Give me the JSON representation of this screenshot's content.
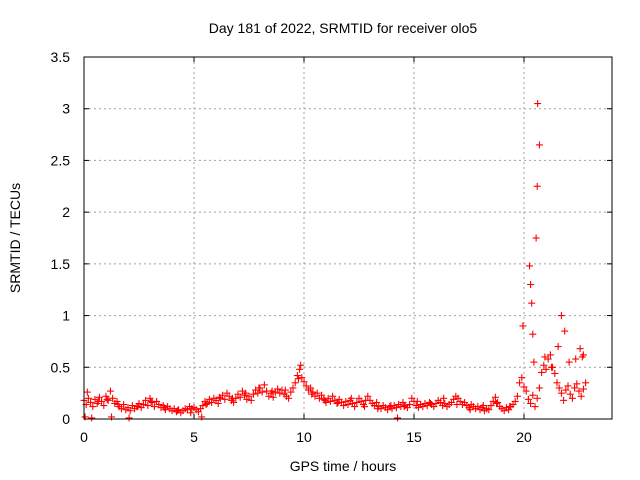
{
  "chart_data": {
    "type": "scatter",
    "title": "Day 181 of 2022, SRMTID for receiver olo5",
    "xlabel": "GPS time / hours",
    "ylabel": "SRMTID / TECUs",
    "xlim": [
      0,
      24
    ],
    "ylim": [
      0,
      3.5
    ],
    "xticks": [
      0,
      5,
      10,
      15,
      20
    ],
    "xtick_labels": [
      "0",
      "5",
      "10",
      "15",
      "20"
    ],
    "yticks": [
      0,
      0.5,
      1,
      1.5,
      2,
      2.5,
      3,
      3.5
    ],
    "ytick_labels": [
      "0",
      "0.5",
      "1",
      "1.5",
      "2",
      "2.5",
      "3",
      "3.5"
    ],
    "grid": true,
    "marker": "+",
    "series": [
      {
        "name": "SRMTID",
        "color": "#ff0000",
        "x": [
          0.0,
          0.1,
          0.2,
          0.3,
          0.4,
          0.5,
          0.6,
          0.7,
          0.8,
          0.9,
          1.0,
          1.1,
          1.2,
          1.3,
          1.4,
          1.5,
          1.6,
          1.7,
          1.8,
          1.9,
          2.0,
          2.1,
          2.2,
          2.3,
          2.4,
          2.5,
          2.6,
          2.7,
          2.8,
          2.9,
          3.0,
          3.1,
          3.2,
          3.3,
          3.4,
          3.5,
          3.6,
          3.7,
          3.8,
          3.9,
          4.0,
          4.1,
          4.2,
          4.3,
          4.4,
          4.5,
          4.6,
          4.7,
          4.8,
          4.9,
          5.0,
          5.1,
          5.2,
          5.3,
          5.4,
          5.5,
          5.6,
          5.7,
          5.8,
          5.9,
          6.0,
          6.1,
          6.2,
          6.3,
          6.4,
          6.5,
          6.6,
          6.7,
          6.8,
          6.9,
          7.0,
          7.1,
          7.2,
          7.3,
          7.4,
          7.5,
          7.6,
          7.7,
          7.8,
          7.9,
          8.0,
          8.1,
          8.2,
          8.3,
          8.4,
          8.5,
          8.6,
          8.7,
          8.8,
          8.9,
          9.0,
          9.1,
          9.2,
          9.3,
          9.4,
          9.5,
          9.6,
          9.7,
          9.8,
          9.9,
          10.0,
          10.1,
          10.2,
          10.3,
          10.4,
          10.5,
          10.6,
          10.7,
          10.8,
          10.9,
          11.0,
          11.1,
          11.2,
          11.3,
          11.4,
          11.5,
          11.6,
          11.7,
          11.8,
          11.9,
          12.0,
          12.1,
          12.2,
          12.3,
          12.4,
          12.5,
          12.6,
          12.7,
          12.8,
          12.9,
          13.0,
          13.1,
          13.2,
          13.3,
          13.4,
          13.5,
          13.6,
          13.7,
          13.8,
          13.9,
          14.0,
          14.1,
          14.2,
          14.3,
          14.4,
          14.5,
          14.6,
          14.7,
          14.8,
          14.9,
          15.0,
          15.1,
          15.2,
          15.3,
          15.4,
          15.5,
          15.6,
          15.7,
          15.8,
          15.9,
          16.0,
          16.1,
          16.2,
          16.3,
          16.4,
          16.5,
          16.6,
          16.7,
          16.8,
          16.9,
          17.0,
          17.1,
          17.2,
          17.3,
          17.4,
          17.5,
          17.6,
          17.7,
          17.8,
          17.9,
          18.0,
          18.1,
          18.2,
          18.3,
          18.4,
          18.5,
          18.6,
          18.7,
          18.8,
          18.9,
          19.0,
          19.1,
          19.2,
          19.3,
          19.4,
          19.5,
          19.6,
          19.7,
          19.8,
          19.9,
          20.0,
          20.1,
          20.2,
          20.3,
          20.4,
          20.5,
          20.6,
          20.7,
          20.8,
          20.9,
          21.0,
          21.1,
          21.2,
          21.3,
          21.4,
          21.5,
          21.6,
          21.7,
          21.8,
          21.9,
          22.0,
          22.1,
          22.2,
          22.3,
          22.4,
          22.5,
          22.6,
          22.7,
          22.8,
          0.05,
          0.35,
          1.25,
          2.05,
          5.35,
          14.25,
          20.25,
          20.3,
          20.35,
          20.4,
          20.55,
          20.6,
          20.62,
          20.7,
          21.7,
          21.85,
          22.55,
          22.7,
          0.15,
          0.65,
          1.05,
          1.55,
          2.45,
          3.05,
          3.65,
          4.25,
          4.85,
          5.55,
          6.15,
          6.75,
          7.35,
          7.95,
          8.55,
          9.15,
          9.75,
          9.85,
          10.35,
          10.95,
          11.55,
          12.15,
          12.75,
          13.35,
          13.95,
          14.55,
          15.15,
          15.75,
          16.35,
          16.95,
          17.55,
          18.15,
          18.75,
          19.35,
          19.95,
          20.45,
          20.95,
          21.25,
          21.55,
          22.05,
          22.35,
          22.65
        ],
        "y": [
          0.18,
          0.14,
          0.2,
          0.16,
          0.12,
          0.19,
          0.15,
          0.21,
          0.17,
          0.13,
          0.22,
          0.18,
          0.27,
          0.2,
          0.15,
          0.17,
          0.12,
          0.1,
          0.14,
          0.09,
          0.11,
          0.08,
          0.13,
          0.1,
          0.12,
          0.15,
          0.11,
          0.14,
          0.18,
          0.13,
          0.2,
          0.16,
          0.12,
          0.17,
          0.14,
          0.11,
          0.13,
          0.09,
          0.12,
          0.1,
          0.08,
          0.1,
          0.07,
          0.09,
          0.06,
          0.08,
          0.1,
          0.09,
          0.12,
          0.1,
          0.11,
          0.09,
          0.07,
          0.1,
          0.13,
          0.17,
          0.15,
          0.19,
          0.16,
          0.2,
          0.18,
          0.15,
          0.2,
          0.23,
          0.19,
          0.25,
          0.22,
          0.18,
          0.16,
          0.2,
          0.24,
          0.21,
          0.27,
          0.23,
          0.19,
          0.22,
          0.18,
          0.24,
          0.28,
          0.25,
          0.3,
          0.26,
          0.33,
          0.27,
          0.22,
          0.25,
          0.21,
          0.26,
          0.29,
          0.25,
          0.28,
          0.24,
          0.22,
          0.2,
          0.26,
          0.3,
          0.35,
          0.42,
          0.48,
          0.4,
          0.36,
          0.32,
          0.28,
          0.3,
          0.26,
          0.22,
          0.25,
          0.2,
          0.23,
          0.19,
          0.16,
          0.2,
          0.17,
          0.22,
          0.18,
          0.15,
          0.19,
          0.16,
          0.13,
          0.17,
          0.14,
          0.18,
          0.15,
          0.12,
          0.16,
          0.2,
          0.17,
          0.14,
          0.18,
          0.22,
          0.18,
          0.15,
          0.13,
          0.16,
          0.12,
          0.1,
          0.13,
          0.11,
          0.09,
          0.12,
          0.1,
          0.13,
          0.11,
          0.14,
          0.12,
          0.16,
          0.13,
          0.11,
          0.14,
          0.2,
          0.17,
          0.13,
          0.11,
          0.14,
          0.12,
          0.15,
          0.13,
          0.16,
          0.14,
          0.12,
          0.15,
          0.18,
          0.16,
          0.13,
          0.15,
          0.12,
          0.14,
          0.16,
          0.19,
          0.22,
          0.2,
          0.17,
          0.14,
          0.16,
          0.13,
          0.11,
          0.14,
          0.12,
          0.1,
          0.12,
          0.09,
          0.11,
          0.08,
          0.1,
          0.09,
          0.13,
          0.17,
          0.21,
          0.16,
          0.12,
          0.1,
          0.08,
          0.11,
          0.09,
          0.12,
          0.14,
          0.17,
          0.22,
          0.35,
          0.4,
          0.31,
          0.27,
          0.19,
          0.15,
          0.23,
          0.12,
          0.2,
          0.3,
          0.45,
          0.52,
          0.48,
          0.58,
          0.62,
          0.5,
          0.44,
          0.35,
          0.3,
          0.25,
          0.18,
          0.28,
          0.32,
          0.24,
          0.2,
          0.3,
          0.34,
          0.27,
          0.22,
          0.29,
          0.35,
          0.02,
          0.01,
          0.02,
          0.01,
          0.02,
          0.01,
          1.48,
          1.3,
          1.12,
          0.82,
          1.75,
          2.25,
          3.05,
          2.65,
          1.0,
          0.85,
          0.68,
          0.62,
          0.26,
          0.17,
          0.19,
          0.14,
          0.12,
          0.17,
          0.11,
          0.08,
          0.06,
          0.14,
          0.21,
          0.2,
          0.25,
          0.3,
          0.27,
          0.28,
          0.39,
          0.52,
          0.24,
          0.18,
          0.16,
          0.2,
          0.12,
          0.1,
          0.13,
          0.12,
          0.17,
          0.15,
          0.2,
          0.14,
          0.09,
          0.13,
          0.15,
          0.12,
          0.9,
          0.55,
          0.6,
          0.5,
          0.7,
          0.55,
          0.58,
          0.6
        ]
      }
    ]
  }
}
